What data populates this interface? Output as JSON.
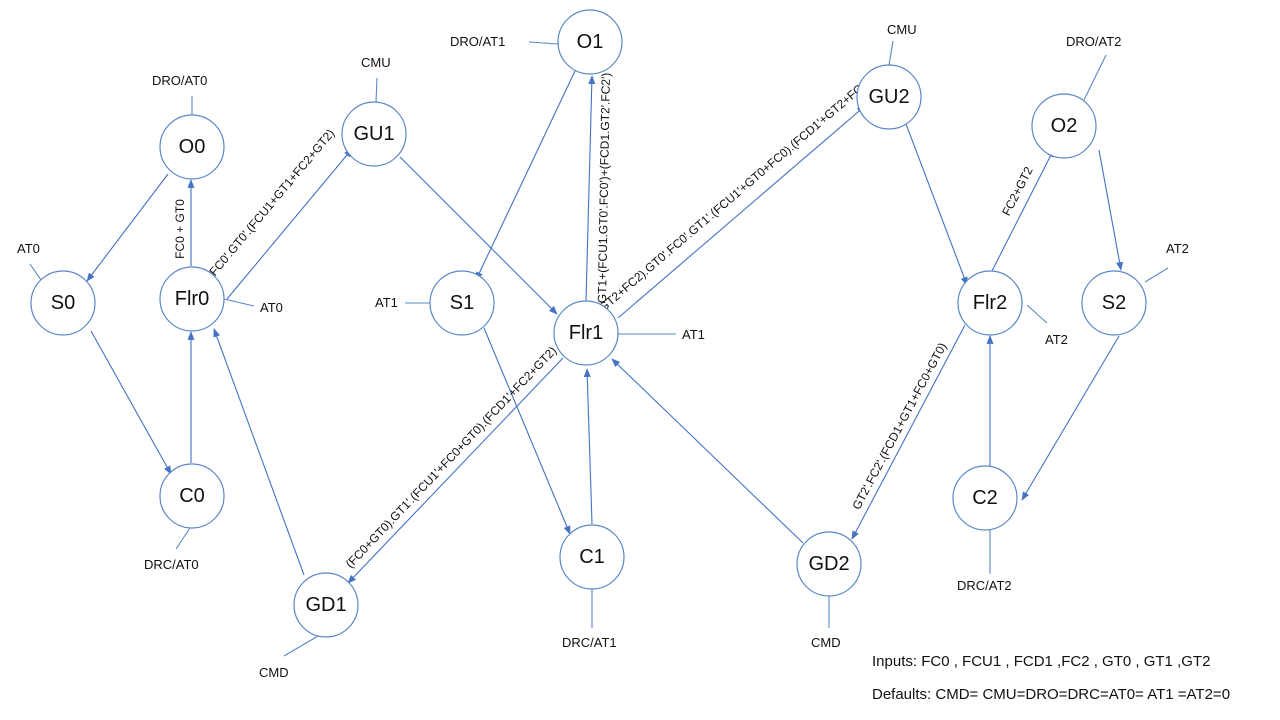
{
  "diagram": {
    "states": {
      "S0": "S0",
      "Flr0": "Flr0",
      "O0": "O0",
      "C0": "C0",
      "GU1": "GU1",
      "GD1": "GD1",
      "S1": "S1",
      "O1": "O1",
      "Flr1": "Flr1",
      "C1": "C1",
      "GU2": "GU2",
      "GD2": "GD2",
      "Flr2": "Flr2",
      "O2": "O2",
      "S2": "S2",
      "C2": "C2"
    },
    "outputs": {
      "S0": "AT0",
      "Flr0": "AT0",
      "O0": "DRO/AT0",
      "C0": "DRC/AT0",
      "GU1": "CMU",
      "GD1": "CMD",
      "S1": "AT1",
      "O1": "DRO/AT1",
      "Flr1": "AT1",
      "C1": "DRC/AT1",
      "GU2": "CMU",
      "GD2": "CMD",
      "Flr2": "AT2",
      "O2": "DRO/AT2",
      "S2": "AT2",
      "C2": "DRC/AT2"
    },
    "conditions": {
      "flr0_o0": "FC0 + GT0",
      "flr0_gu1": "FC0'.GT0'.(FCU1+GT1+FC2+GT2)",
      "flr1_o1": "GT1+(FCU1.GT0'.FC0')+(FCD1.GT2'.FC2')",
      "flr1_gu2": "(GT2+FC2).GT0'.FC0'.GT1'.(FCU1'+GT0+FC0).(FCD1'+GT2+FC2)",
      "flr1_gd1": "(FC0+GT0).GT1'.(FCU1'+FC0+GT0).(FCD1'+FC2+GT2)",
      "flr2_o2": "FC2+GT2",
      "flr2_gd2": "GT2'.FC2'.(FCD1+GT1+FC0+GT0)"
    }
  },
  "footer": {
    "inputs": "Inputs: FC0 , FCU1 , FCD1 ,FC2 , GT0 , GT1 ,GT2",
    "defaults": "Defaults: CMD= CMU=DRO=DRC=AT0= AT1 =AT2=0"
  }
}
